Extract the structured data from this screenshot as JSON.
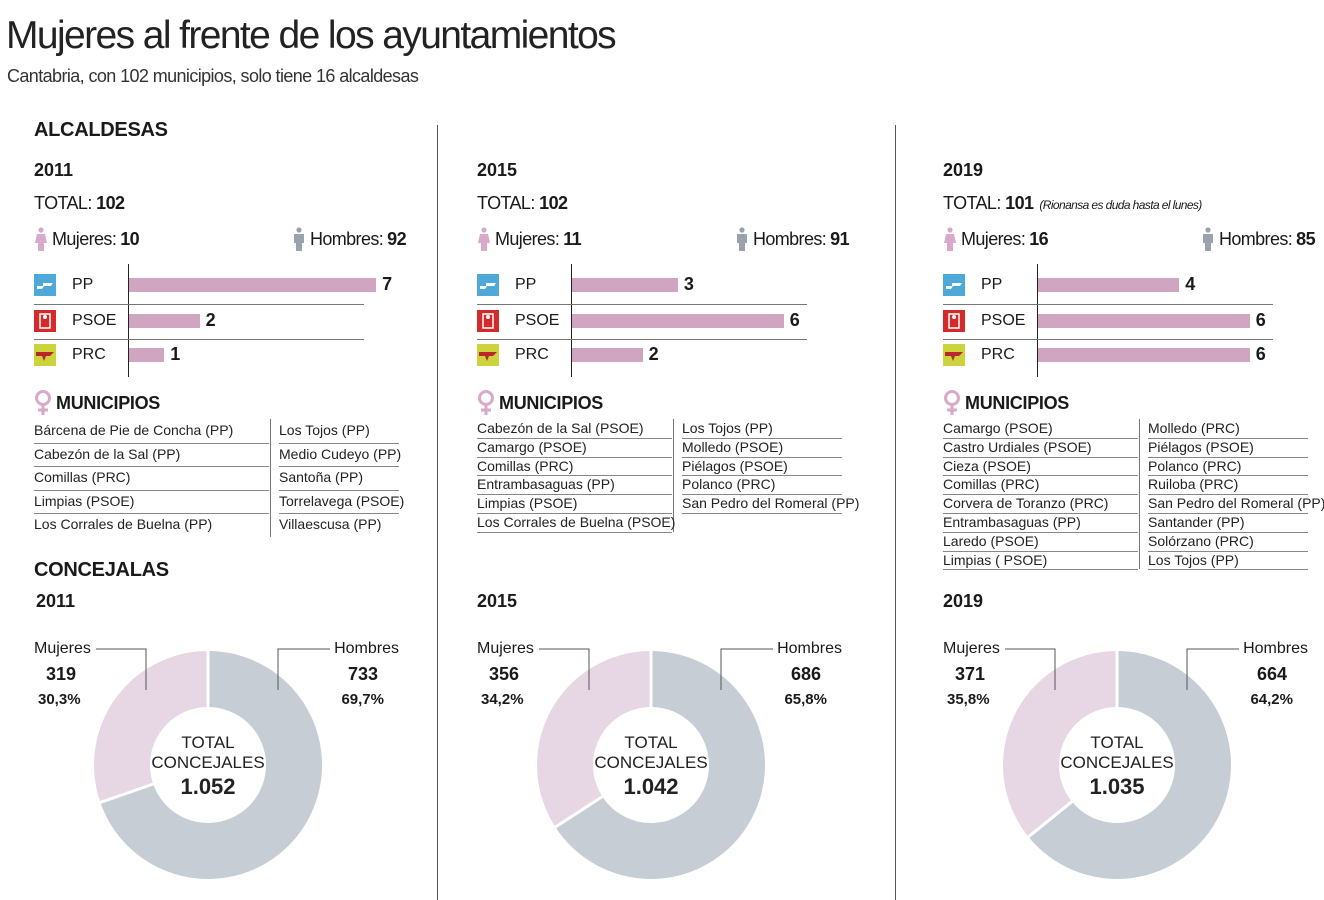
{
  "title": "Mujeres al frente de los ayuntamientos",
  "subtitle": "Cantabria, con 102 municipios, solo tiene 16 alcaldesas",
  "section_alcaldesas": "ALCALDESAS",
  "section_concejalas": "CONCEJALAS",
  "labels": {
    "total": "TOTAL:",
    "mujeres": "Mujeres:",
    "hombres": "Hombres:",
    "municipios": "MUNICIPIOS",
    "donut_mujeres": "Mujeres",
    "donut_hombres": "Hombres",
    "center_line1": "TOTAL",
    "center_line2": "CONCEJALES"
  },
  "colors": {
    "bar": "#cfa5c2",
    "women": "#e7d6e3",
    "men": "#c7cdd5",
    "pp": "#4ea8d8",
    "psoe": "#d42a2a",
    "prc": "#cdd33c"
  },
  "chart_data": [
    {
      "type": "bar",
      "year": "2011",
      "total": "102",
      "note": "",
      "mujeres": "10",
      "hombres": "92",
      "categories": [
        "PP",
        "PSOE",
        "PRC"
      ],
      "values": [
        7,
        2,
        1
      ],
      "municipios": [
        [
          "Bárcena de Pie de Concha (PP)",
          "Cabezón de la Sal (PP)",
          "Comillas (PRC)",
          "Limpias (PSOE)",
          "Los Corrales de Buelna (PP)"
        ],
        [
          "Los Tojos (PP)",
          "Medio Cudeyo (PP)",
          "Santoña (PP)",
          "Torrelavega (PSOE)",
          "Villaescusa (PP)"
        ]
      ],
      "concejalas": {
        "type": "pie",
        "mujeres": 319,
        "mujeres_pct": "30,3%",
        "hombres": 733,
        "hombres_pct": "69,7%",
        "total": "1.052"
      }
    },
    {
      "type": "bar",
      "year": "2015",
      "total": "102",
      "note": "",
      "mujeres": "11",
      "hombres": "91",
      "categories": [
        "PP",
        "PSOE",
        "PRC"
      ],
      "values": [
        3,
        6,
        2
      ],
      "municipios": [
        [
          "Cabezón de la Sal (PSOE)",
          "Camargo (PSOE)",
          "Comillas (PRC)",
          "Entrambasaguas (PP)",
          "Limpias (PSOE)",
          "Los Corrales de Buelna (PSOE)"
        ],
        [
          "Los Tojos (PP)",
          "Molledo (PSOE)",
          "Piélagos (PSOE)",
          "Polanco (PRC)",
          "San Pedro del Romeral (PP)"
        ]
      ],
      "concejalas": {
        "type": "pie",
        "mujeres": 356,
        "mujeres_pct": "34,2%",
        "hombres": 686,
        "hombres_pct": "65,8%",
        "total": "1.042"
      }
    },
    {
      "type": "bar",
      "year": "2019",
      "total": "101",
      "note": "(Rionansa es duda hasta el lunes)",
      "mujeres": "16",
      "hombres": "85",
      "categories": [
        "PP",
        "PSOE",
        "PRC"
      ],
      "values": [
        4,
        6,
        6
      ],
      "municipios": [
        [
          "Camargo (PSOE)",
          "Castro Urdiales (PSOE)",
          "Cieza (PSOE)",
          "Comillas (PRC)",
          "Corvera de Toranzo (PRC)",
          "Entrambasaguas (PP)",
          "Laredo (PSOE)",
          "Limpias ( PSOE)"
        ],
        [
          "Molledo (PRC)",
          "Piélagos (PSOE)",
          "Polanco (PRC)",
          "Ruiloba (PRC)",
          "San Pedro del Romeral (PP)",
          "Santander (PP)",
          "Solórzano (PRC)",
          "Los Tojos (PP)"
        ]
      ],
      "concejalas": {
        "type": "pie",
        "mujeres": 371,
        "mujeres_pct": "35,8%",
        "hombres": 664,
        "hombres_pct": "64,2%",
        "total": "1.035"
      }
    }
  ]
}
